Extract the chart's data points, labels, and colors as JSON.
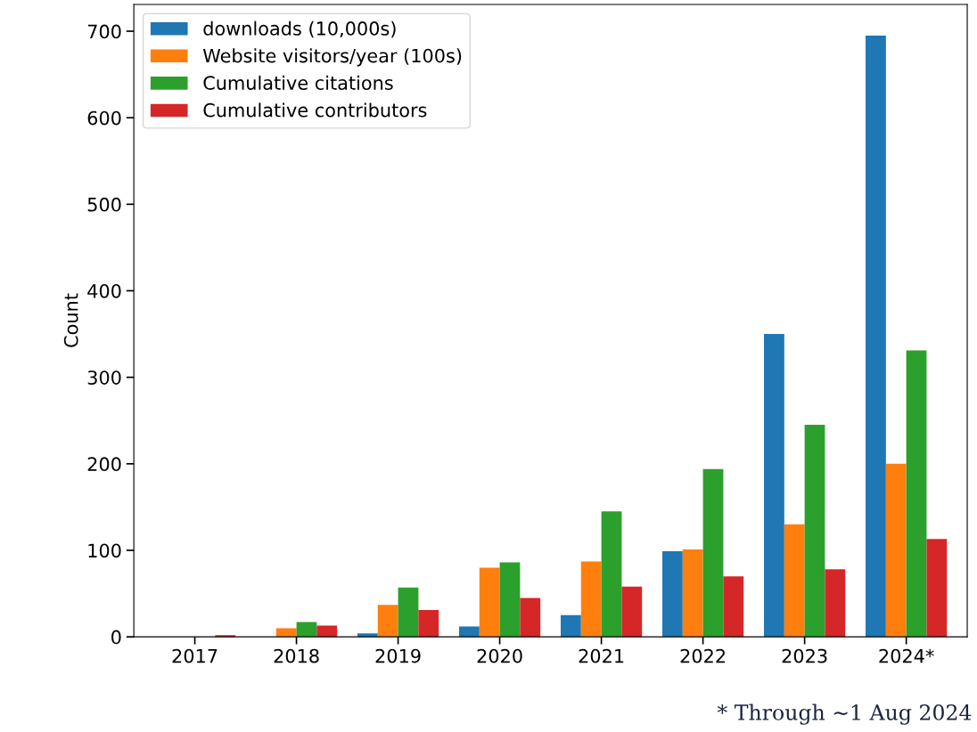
{
  "chart_data": {
    "type": "bar",
    "ylabel": "Count",
    "categories": [
      "2017",
      "2018",
      "2019",
      "2020",
      "2021",
      "2022",
      "2023",
      "2024*"
    ],
    "series": [
      {
        "name": "downloads (10,000s)",
        "color": "#1f77b4",
        "values": [
          0,
          null,
          4,
          12,
          25,
          99,
          350,
          695
        ]
      },
      {
        "name": "Website visitors/year (100s)",
        "color": "#ff7f0e",
        "values": [
          0,
          10,
          37,
          80,
          87,
          101,
          130,
          200
        ]
      },
      {
        "name": "Cumulative citations",
        "color": "#2ca02c",
        "values": [
          0,
          17,
          57,
          86,
          145,
          194,
          245,
          331
        ]
      },
      {
        "name": "Cumulative contributors",
        "color": "#d62728",
        "values": [
          2,
          13,
          31,
          45,
          58,
          70,
          78,
          113
        ]
      }
    ],
    "ylim": [
      0,
      731
    ],
    "yticks": [
      0,
      100,
      200,
      300,
      400,
      500,
      600,
      700
    ],
    "legend": "upper left",
    "grid": false,
    "annotations": [
      "* Through ~1 Aug 2024"
    ]
  }
}
